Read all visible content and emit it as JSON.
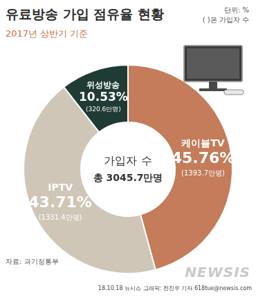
{
  "chart_data": {
    "type": "doughnut",
    "title": "유료방송 가입 점유율 현황",
    "subtitle": "2017년 상반기 기준",
    "unit_note": "단위: %",
    "count_note": "( )은 가입자 수",
    "categories": [
      "케이블TV",
      "IPTV",
      "위성방송"
    ],
    "values": [
      45.76,
      43.71,
      10.53
    ],
    "value_labels": [
      "45.76%",
      "43.71%",
      "10.53%"
    ],
    "subscriber_labels": [
      "(1393.7만명)",
      "(1331.4만명)",
      "(320.6만명)"
    ],
    "colors": [
      "#c47c5a",
      "#cfc6b8",
      "#1f3b34"
    ],
    "center_label": "가입자 수",
    "total_label": "총 3045.7만명",
    "source": "자료: 과기정통부",
    "credit": "18.10.18 뉴시스 그래픽: 전진우 기자 618tue@newsis.com",
    "watermark": "NEWSIS",
    "data_labels": true
  }
}
